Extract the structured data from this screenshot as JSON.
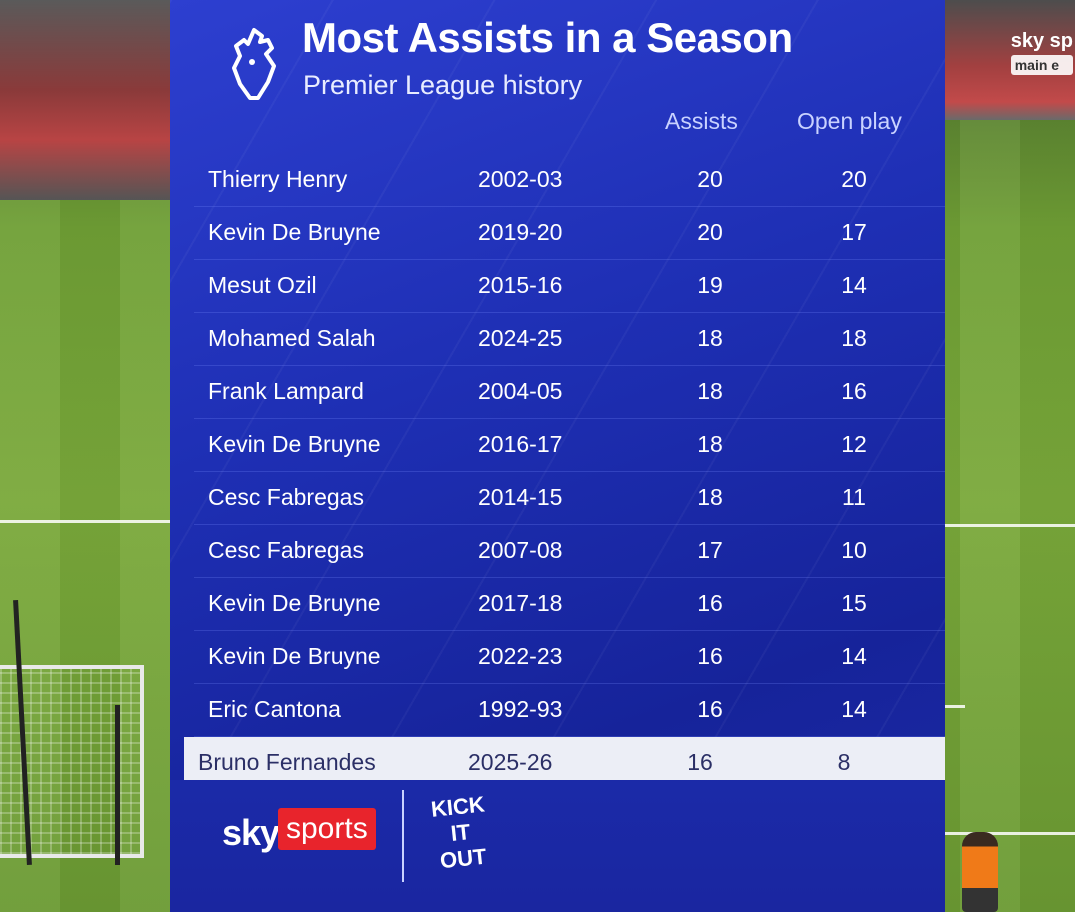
{
  "title": "Most Assists in a Season",
  "subtitle": "Premier League history",
  "columns": {
    "assists": "Assists",
    "open_play": "Open play"
  },
  "rows": [
    {
      "player": "Thierry Henry",
      "season": "2002-03",
      "assists": "20",
      "open_play": "20"
    },
    {
      "player": "Kevin De Bruyne",
      "season": "2019-20",
      "assists": "20",
      "open_play": "17"
    },
    {
      "player": "Mesut Ozil",
      "season": "2015-16",
      "assists": "19",
      "open_play": "14"
    },
    {
      "player": "Mohamed Salah",
      "season": "2024-25",
      "assists": "18",
      "open_play": "18"
    },
    {
      "player": "Frank Lampard",
      "season": "2004-05",
      "assists": "18",
      "open_play": "16"
    },
    {
      "player": "Kevin De Bruyne",
      "season": "2016-17",
      "assists": "18",
      "open_play": "12"
    },
    {
      "player": "Cesc Fabregas",
      "season": "2014-15",
      "assists": "18",
      "open_play": "11"
    },
    {
      "player": "Cesc Fabregas",
      "season": "2007-08",
      "assists": "17",
      "open_play": "10"
    },
    {
      "player": "Kevin De Bruyne",
      "season": "2017-18",
      "assists": "16",
      "open_play": "15"
    },
    {
      "player": "Kevin De Bruyne",
      "season": "2022-23",
      "assists": "16",
      "open_play": "14"
    },
    {
      "player": "Eric Cantona",
      "season": "1992-93",
      "assists": "16",
      "open_play": "14"
    },
    {
      "player": "Bruno Fernandes",
      "season": "2025-26",
      "assists": "16",
      "open_play": "8"
    }
  ],
  "highlight_row": 11,
  "footer": {
    "sky": "sky",
    "sports": "sports",
    "kick_it_out": [
      "KICK",
      "IT",
      "OUT"
    ]
  },
  "broadcast_corner": {
    "brand": "sky sp",
    "tag": "main e"
  },
  "colors": {
    "board": "#1e2fb4",
    "highlight": "#eceef6",
    "sports_red": "#e8242c"
  },
  "icons": {
    "league_logo": "lion-crest-icon"
  }
}
